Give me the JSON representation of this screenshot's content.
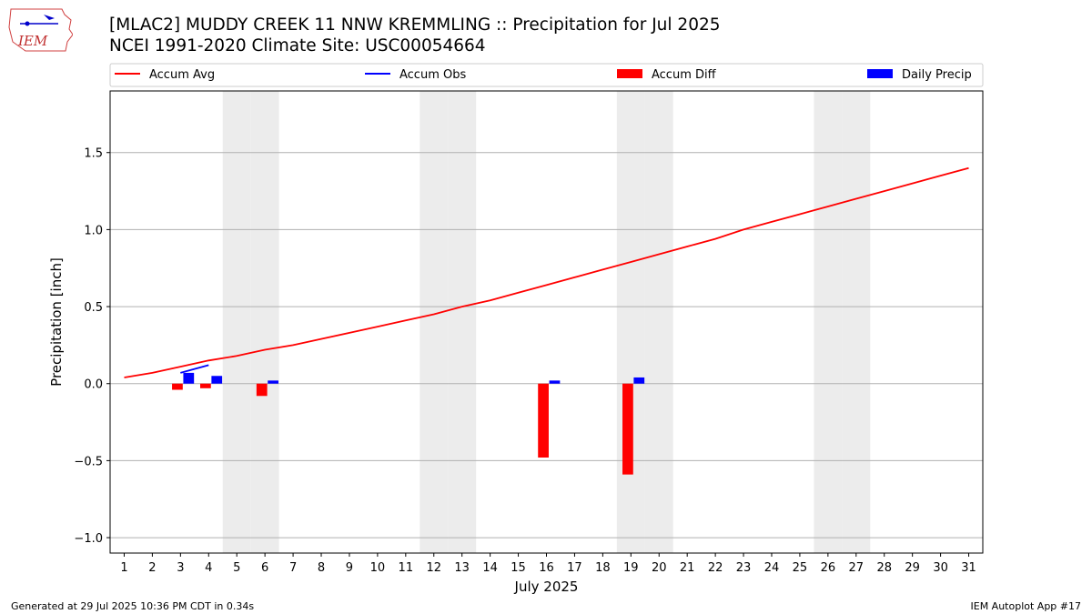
{
  "header": {
    "title_line1": "[MLAC2] MUDDY CREEK 11 NNW KREMMLING :: Precipitation for Jul 2025",
    "title_line2": "NCEI 1991-2020 Climate Site: USC00054664",
    "logo_text": "IEM"
  },
  "footer": {
    "generated": "Generated at 29 Jul 2025 10:36 PM CDT in 0.34s",
    "app": "IEM Autoplot App #17"
  },
  "colors": {
    "accum_avg": "#ff0000",
    "accum_obs": "#0000ff",
    "accum_diff": "#ff0000",
    "daily_precip": "#0000ff",
    "weekend_shade": "#ececec",
    "grid": "#b0b0b0"
  },
  "chart_data": {
    "type": "bar",
    "xlabel": "July 2025",
    "ylabel": "Precipitation [inch]",
    "xlim": [
      0.5,
      31.5
    ],
    "ylim": [
      -1.1,
      1.9
    ],
    "yticks": [
      -1.0,
      -0.5,
      0.0,
      0.5,
      1.0,
      1.5
    ],
    "ytick_labels": [
      "−1.0",
      "−0.5",
      "0.0",
      "0.5",
      "1.0",
      "1.5"
    ],
    "days": [
      1,
      2,
      3,
      4,
      5,
      6,
      7,
      8,
      9,
      10,
      11,
      12,
      13,
      14,
      15,
      16,
      17,
      18,
      19,
      20,
      21,
      22,
      23,
      24,
      25,
      26,
      27,
      28,
      29,
      30,
      31
    ],
    "weekend_days": [
      5,
      6,
      12,
      13,
      19,
      20,
      26,
      27
    ],
    "grid": "horizontal",
    "legend_placement": "top, above plot",
    "legend": [
      "Accum Avg",
      "Accum Obs",
      "Accum Diff",
      "Daily Precip"
    ],
    "series": [
      {
        "name": "Accum Avg",
        "kind": "line",
        "x": [
          1,
          2,
          3,
          4,
          5,
          6,
          7,
          8,
          9,
          10,
          11,
          12,
          13,
          14,
          15,
          16,
          17,
          18,
          19,
          20,
          21,
          22,
          23,
          24,
          25,
          26,
          27,
          28,
          29,
          30,
          31
        ],
        "values": [
          0.04,
          0.07,
          0.11,
          0.15,
          0.18,
          0.22,
          0.25,
          0.29,
          0.33,
          0.37,
          0.41,
          0.45,
          0.5,
          0.54,
          0.59,
          0.64,
          0.69,
          0.74,
          0.79,
          0.84,
          0.89,
          0.94,
          1.0,
          1.05,
          1.1,
          1.15,
          1.2,
          1.25,
          1.3,
          1.35,
          1.4
        ]
      },
      {
        "name": "Accum Obs",
        "kind": "line",
        "x": [
          3,
          4
        ],
        "values": [
          0.07,
          0.12
        ]
      },
      {
        "name": "Accum Diff",
        "kind": "bar",
        "x": [
          3,
          4,
          6,
          16,
          19
        ],
        "values": [
          -0.04,
          -0.03,
          -0.08,
          -0.48,
          -0.59
        ]
      },
      {
        "name": "Daily Precip",
        "kind": "bar",
        "x": [
          3,
          4,
          6,
          16,
          19
        ],
        "values": [
          0.07,
          0.05,
          0.02,
          0.02,
          0.04
        ]
      }
    ]
  }
}
